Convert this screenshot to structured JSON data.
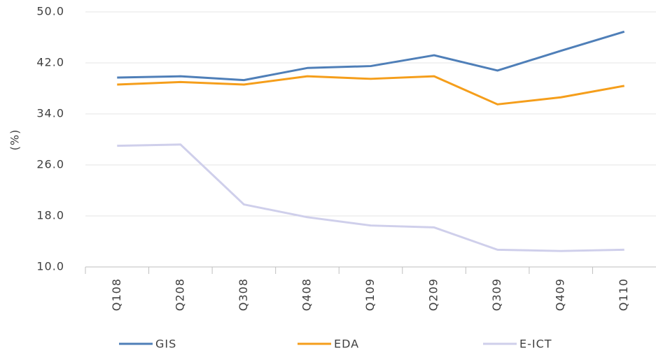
{
  "chart_data": {
    "type": "line",
    "y_label": "(%)",
    "categories": [
      "Q108",
      "Q208",
      "Q308",
      "Q408",
      "Q109",
      "Q209",
      "Q309",
      "Q409",
      "Q110"
    ],
    "series": [
      {
        "name": "GIS",
        "color": "#4f7fb8",
        "values": [
          39.7,
          39.9,
          39.3,
          41.2,
          41.5,
          43.2,
          40.8,
          43.9,
          46.9
        ]
      },
      {
        "name": "EDA",
        "color": "#f59e1b",
        "values": [
          38.6,
          39.0,
          38.6,
          39.9,
          39.5,
          39.9,
          35.5,
          36.6,
          38.4
        ]
      },
      {
        "name": "E-ICT",
        "color": "#cfcfeb",
        "values": [
          29.0,
          29.2,
          19.8,
          17.8,
          16.5,
          16.2,
          12.7,
          12.5,
          12.7
        ]
      }
    ],
    "ylim": [
      10,
      50
    ],
    "yticks": [
      {
        "value": 10,
        "label": "10.0"
      },
      {
        "value": 18,
        "label": "18.0"
      },
      {
        "value": 26,
        "label": "26.0"
      },
      {
        "value": 34,
        "label": "34.0"
      },
      {
        "value": 42,
        "label": "42.0"
      },
      {
        "value": 50,
        "label": "50.0"
      }
    ],
    "grid": true
  }
}
